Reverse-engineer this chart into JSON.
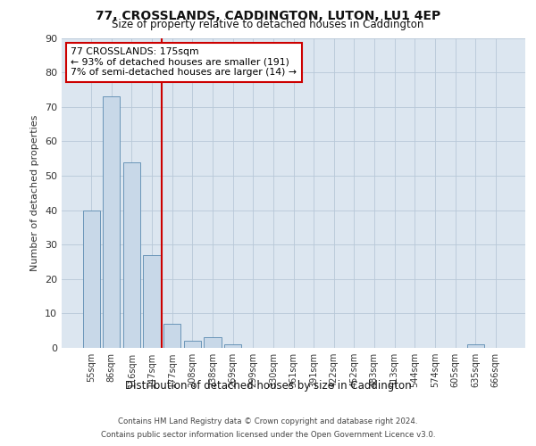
{
  "title1": "77, CROSSLANDS, CADDINGTON, LUTON, LU1 4EP",
  "title2": "Size of property relative to detached houses in Caddington",
  "xlabel": "Distribution of detached houses by size in Caddington",
  "ylabel": "Number of detached properties",
  "bin_labels": [
    "55sqm",
    "86sqm",
    "116sqm",
    "147sqm",
    "177sqm",
    "208sqm",
    "238sqm",
    "269sqm",
    "299sqm",
    "330sqm",
    "361sqm",
    "391sqm",
    "422sqm",
    "452sqm",
    "483sqm",
    "513sqm",
    "544sqm",
    "574sqm",
    "605sqm",
    "635sqm",
    "666sqm"
  ],
  "bar_heights": [
    40,
    73,
    54,
    27,
    7,
    2,
    3,
    1,
    0,
    0,
    0,
    0,
    0,
    0,
    0,
    0,
    0,
    0,
    0,
    1,
    0
  ],
  "bar_color": "#c8d8e8",
  "bar_edge_color": "#5a8ab0",
  "vline_bin_index": 4,
  "vline_color": "#cc0000",
  "annotation_text": "77 CROSSLANDS: 175sqm\n← 93% of detached houses are smaller (191)\n7% of semi-detached houses are larger (14) →",
  "annotation_box_color": "#ffffff",
  "annotation_box_edge": "#cc0000",
  "ylim": [
    0,
    90
  ],
  "yticks": [
    0,
    10,
    20,
    30,
    40,
    50,
    60,
    70,
    80,
    90
  ],
  "background_color": "#dce6f0",
  "footer_line1": "Contains HM Land Registry data © Crown copyright and database right 2024.",
  "footer_line2": "Contains public sector information licensed under the Open Government Licence v3.0."
}
